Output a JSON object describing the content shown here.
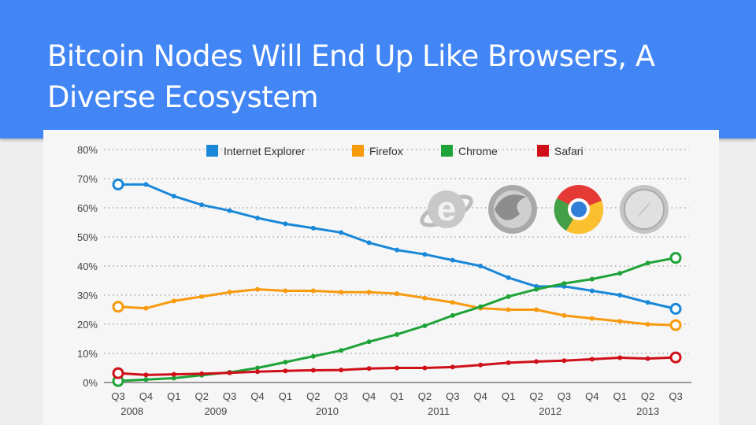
{
  "slide": {
    "title": "Bitcoin Nodes Will End Up Like Browsers, A Diverse Ecosystem"
  },
  "logos": [
    "internet-explorer-logo",
    "firefox-logo",
    "chrome-logo",
    "safari-logo"
  ],
  "chart_data": {
    "type": "line",
    "title": "",
    "xlabel": "",
    "ylabel": "",
    "ylim": [
      0,
      80
    ],
    "yticks": [
      "0%",
      "10%",
      "20%",
      "30%",
      "40%",
      "50%",
      "60%",
      "70%",
      "80%"
    ],
    "ytick_values": [
      0,
      10,
      20,
      30,
      40,
      50,
      60,
      70,
      80
    ],
    "categories": [
      "Q3",
      "Q4",
      "Q1",
      "Q2",
      "Q3",
      "Q4",
      "Q1",
      "Q2",
      "Q3",
      "Q4",
      "Q1",
      "Q2",
      "Q3",
      "Q4",
      "Q1",
      "Q2",
      "Q3",
      "Q4",
      "Q1",
      "Q2",
      "Q3"
    ],
    "year_labels": [
      {
        "label": "2008",
        "at": 0.5
      },
      {
        "label": "2009",
        "at": 3.5
      },
      {
        "label": "2010",
        "at": 7.5
      },
      {
        "label": "2011",
        "at": 11.5
      },
      {
        "label": "2012",
        "at": 15.5
      },
      {
        "label": "2013",
        "at": 19
      }
    ],
    "grid": true,
    "legend_position": "top",
    "series": [
      {
        "name": "Internet Explorer",
        "color": "#1a88d8",
        "values": [
          68,
          68,
          64,
          61,
          59,
          56.5,
          54.5,
          53,
          51.5,
          48,
          45.5,
          44,
          42,
          40,
          36,
          33,
          33,
          31.5,
          30,
          27.5,
          25.3
        ]
      },
      {
        "name": "Firefox",
        "color": "#f79a0e",
        "values": [
          26,
          25.5,
          28,
          29.5,
          31,
          32,
          31.5,
          31.5,
          31,
          31,
          30.5,
          29,
          27.5,
          25.5,
          25,
          25,
          23,
          22,
          21,
          20,
          19.7
        ]
      },
      {
        "name": "Chrome",
        "color": "#1ea338",
        "values": [
          0.5,
          1,
          1.5,
          2.5,
          3.5,
          5,
          7,
          9,
          11,
          14,
          16.5,
          19.5,
          23,
          26,
          29.5,
          32,
          34,
          35.5,
          37.5,
          41,
          42.8
        ]
      },
      {
        "name": "Safari",
        "color": "#cf1019",
        "values": [
          3.2,
          2.6,
          2.8,
          3,
          3.3,
          3.7,
          4,
          4.2,
          4.3,
          4.8,
          5,
          5,
          5.3,
          6,
          6.8,
          7.2,
          7.5,
          8,
          8.5,
          8.2,
          8.6
        ]
      }
    ]
  }
}
